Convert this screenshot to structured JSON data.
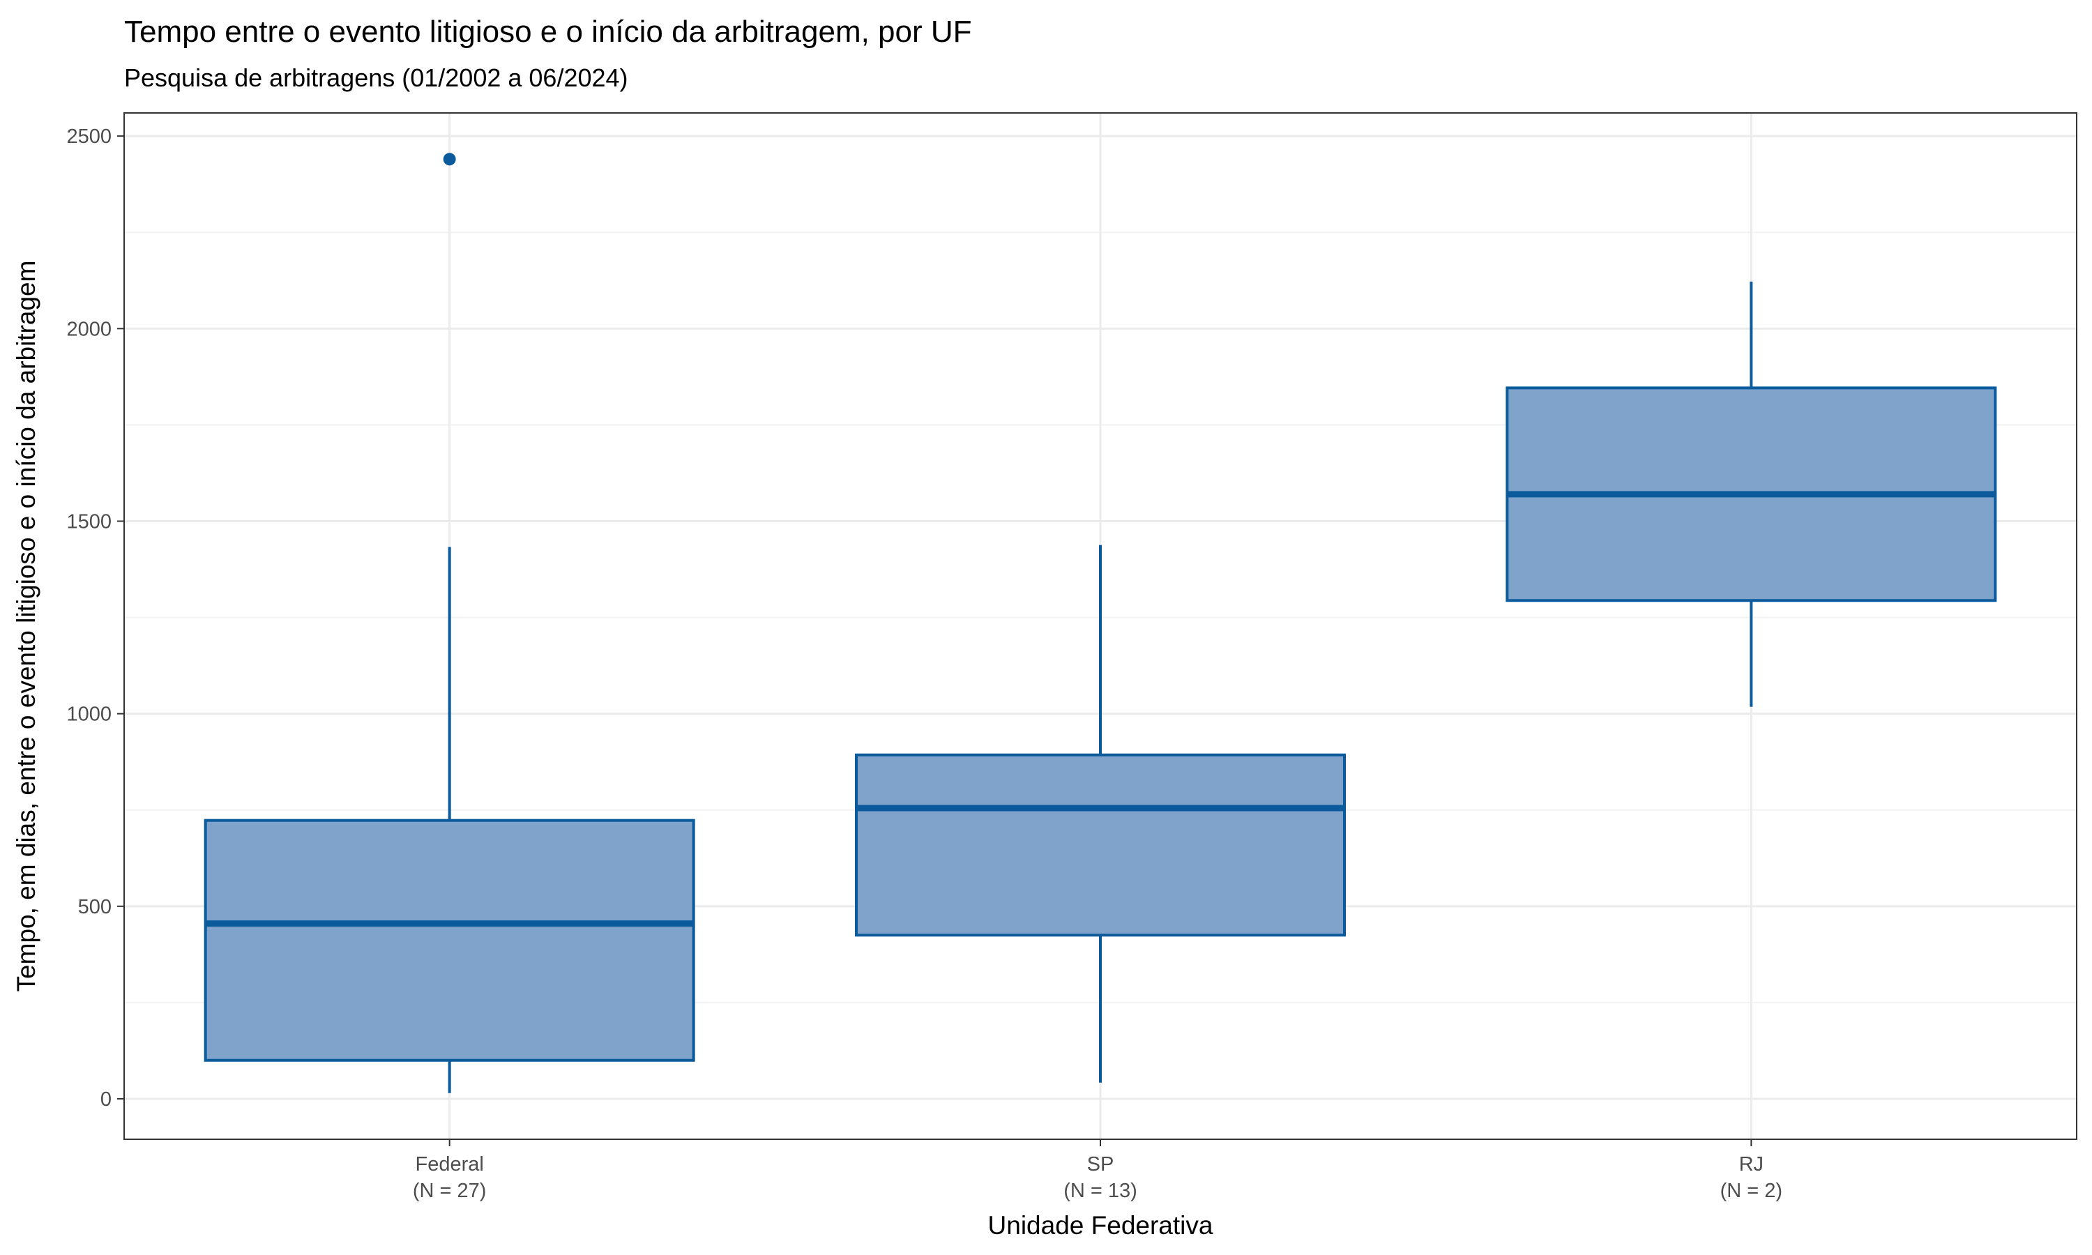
{
  "colors": {
    "box_fill": "#7FA3CB",
    "box_stroke": "#0A5A9C",
    "grid_major": "#EBEBEB",
    "grid_minor": "#F2F2F2",
    "panel_border": "#333333"
  },
  "chart_data": {
    "type": "boxplot",
    "title": "Tempo entre o evento litigioso e o início da arbitragem, por UF",
    "subtitle": "Pesquisa de arbitragens (01/2002 a 06/2024)",
    "xlabel": "Unidade Federativa",
    "ylabel": "Tempo, em dias, entre o evento litigioso e o início da arbitragem",
    "ylim": [
      -105,
      2560
    ],
    "yticks": [
      0,
      500,
      1000,
      1500,
      2000,
      2500
    ],
    "grid": true,
    "categories": [
      {
        "name": "Federal",
        "n_label": "(N = 27)",
        "min": 15,
        "q1": 100,
        "median": 455,
        "q3": 723,
        "max": 1433,
        "outliers": [
          2440
        ]
      },
      {
        "name": "SP",
        "n_label": "(N = 13)",
        "min": 42,
        "q1": 425,
        "median": 755,
        "q3": 893,
        "max": 1438,
        "outliers": []
      },
      {
        "name": "RJ",
        "n_label": "(N = 2)",
        "min": 1018,
        "q1": 1294,
        "median": 1570,
        "q3": 1846,
        "max": 2122,
        "outliers": []
      }
    ]
  }
}
